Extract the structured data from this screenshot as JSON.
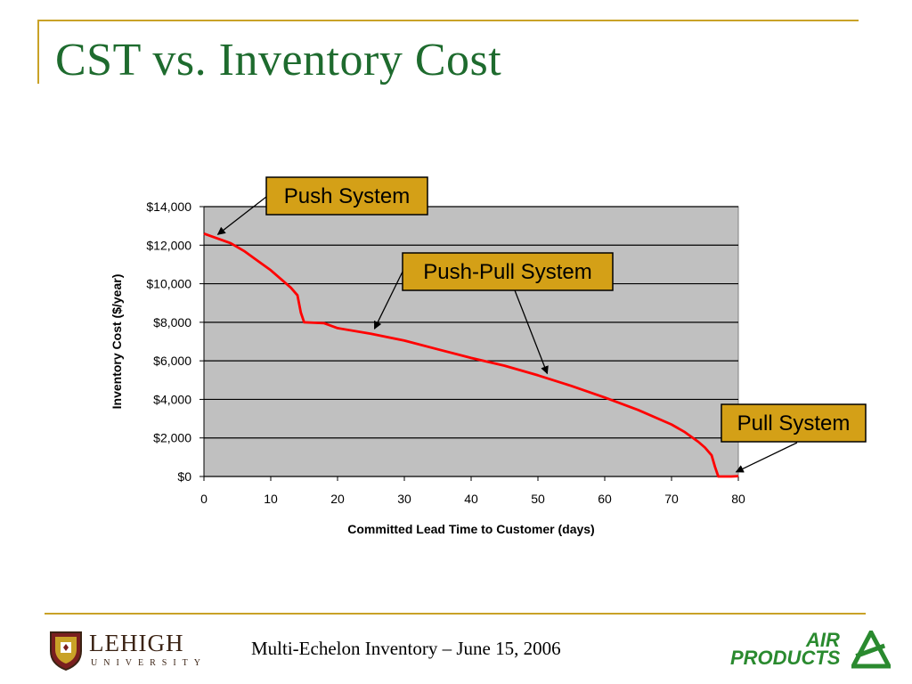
{
  "slide": {
    "title": "CST vs. Inventory Cost",
    "footer": "Multi-Echelon Inventory – June 15, 2006"
  },
  "logos": {
    "lehigh": {
      "name": "LEHIGH",
      "sub": "UNIVERSITY",
      "icon": "shield-crest-icon"
    },
    "airproducts": {
      "line1": "AIR",
      "line2": "PRODUCTS",
      "icon": "air-products-triangle-icon"
    }
  },
  "colors": {
    "title": "#1E6B2E",
    "accent_rule": "#C9A227",
    "plot_background": "#C0C0C0",
    "series_line": "#FF0000",
    "callout_fill": "#D4A017"
  },
  "chart_data": {
    "type": "line",
    "title": "",
    "xlabel": "Committed Lead Time to Customer (days)",
    "ylabel": "Inventory Cost ($/year)",
    "xlim": [
      0,
      80
    ],
    "ylim": [
      0,
      14000
    ],
    "xticks": [
      0,
      10,
      20,
      30,
      40,
      50,
      60,
      70,
      80
    ],
    "yticks": [
      0,
      2000,
      4000,
      6000,
      8000,
      10000,
      12000,
      14000
    ],
    "ytick_labels": [
      "$0",
      "$2,000",
      "$4,000",
      "$6,000",
      "$8,000",
      "$10,000",
      "$12,000",
      "$14,000"
    ],
    "grid": "horizontal",
    "legend": "none",
    "series": [
      {
        "x": [
          0,
          2,
          4,
          6,
          8,
          10,
          12,
          13,
          14,
          14.5,
          15,
          18,
          20,
          25,
          30,
          35,
          40,
          45,
          50,
          55,
          60,
          65,
          70,
          72,
          74,
          75,
          76,
          76.5,
          77,
          78,
          79,
          80
        ],
        "y": [
          12600,
          12350,
          12100,
          11700,
          11200,
          10700,
          10100,
          9800,
          9400,
          8500,
          8000,
          7950,
          7700,
          7400,
          7050,
          6600,
          6150,
          5750,
          5250,
          4700,
          4100,
          3450,
          2700,
          2300,
          1800,
          1500,
          1100,
          500,
          0,
          0,
          0,
          20
        ]
      }
    ],
    "annotations": [
      {
        "text": "Push System",
        "point": [
          1,
          12600
        ]
      },
      {
        "text": "Push-Pull System",
        "point": [
          25,
          7800
        ]
      },
      {
        "text": "Push-Pull System",
        "point": [
          51,
          5200
        ]
      },
      {
        "text": "Pull System",
        "point": [
          79,
          50
        ]
      }
    ]
  }
}
